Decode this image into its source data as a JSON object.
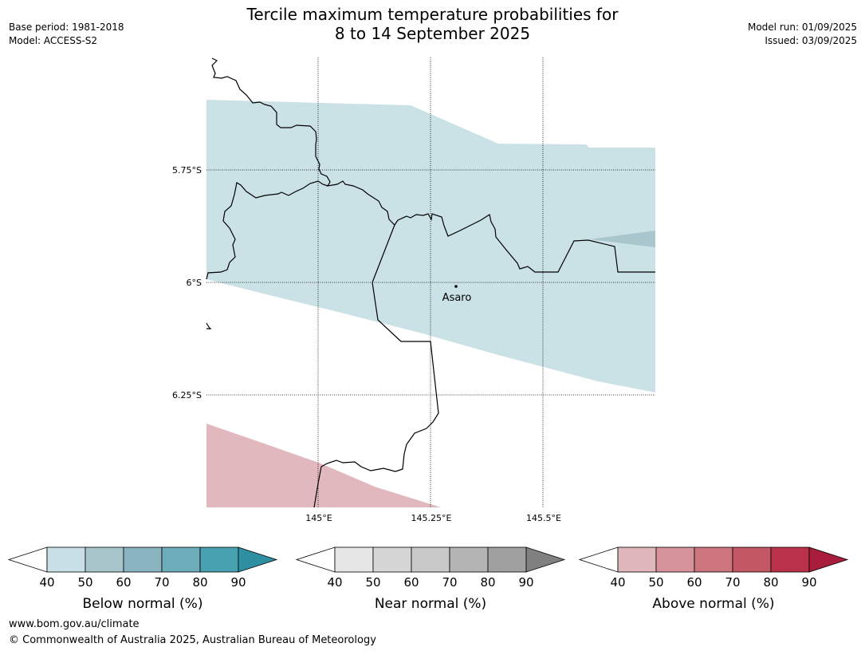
{
  "header": {
    "title_line1": "Tercile maximum temperature probabilities for",
    "title_line2": "8 to 14 September 2025",
    "base_period": "Base period: 1981-2018",
    "model": "Model: ACCESS-S2",
    "model_run": "Model run: 01/09/2025",
    "issued": "Issued: 03/09/2025"
  },
  "map": {
    "lat_labels": [
      "5.75°S",
      "6°S",
      "6.25°S"
    ],
    "lon_labels": [
      "145°E",
      "145.25°E",
      "145.5°E"
    ],
    "place": "Asaro",
    "colors": {
      "below_40": "#cae1e6",
      "below_50": "#a9c6cc",
      "above_40": "#e1b8bd",
      "border": "#000000"
    }
  },
  "legends": [
    {
      "label": "Below normal (%)",
      "ticks": [
        "40",
        "50",
        "60",
        "70",
        "80",
        "90"
      ],
      "colors": [
        "#c9e1e6",
        "#a8c5cb",
        "#89b4c0",
        "#6dacbb",
        "#48a1b0",
        "#2e8fa0"
      ]
    },
    {
      "label": "Near normal (%)",
      "ticks": [
        "40",
        "50",
        "60",
        "70",
        "80",
        "90"
      ],
      "colors": [
        "#e6e6e6",
        "#d6d6d6",
        "#c9c9c9",
        "#b4b4b4",
        "#a0a0a0",
        "#808080"
      ]
    },
    {
      "label": "Above normal (%)",
      "ticks": [
        "40",
        "50",
        "60",
        "70",
        "80",
        "90"
      ],
      "colors": [
        "#e0b7bb",
        "#d7939b",
        "#cc757d",
        "#c35764",
        "#ba324a",
        "#a81c3c"
      ]
    }
  ],
  "footer": {
    "website": "www.bom.gov.au/climate",
    "copyright": "© Commonwealth of Australia 2025, Australian Bureau of Meteorology"
  }
}
